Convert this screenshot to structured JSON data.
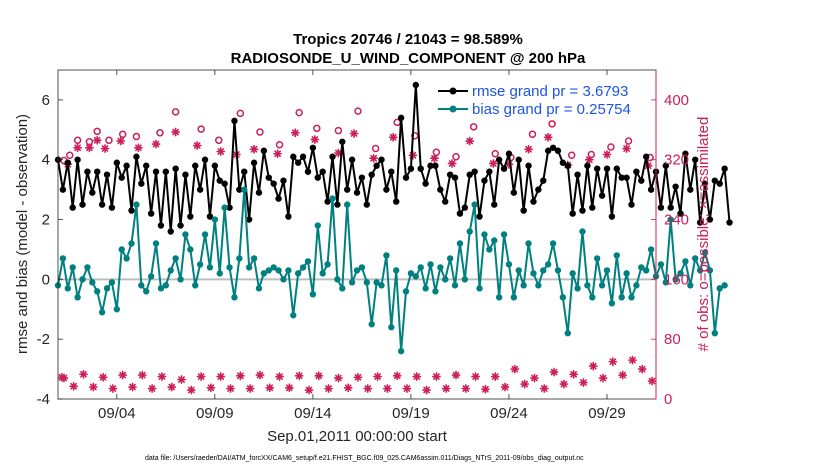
{
  "chart_data": {
    "type": "line",
    "title_line1": "Tropics 20746 / 21043 = 98.589%",
    "title_line2": "RADIOSONDE_U_WIND_COMPONENT @ 200 hPa",
    "xlabel": "Sep.01,2011 00:00:00 start",
    "ylabel_left": "rmse and bias (model - observation)",
    "ylabel_right": "# of obs: o=possible; ×=assimilated",
    "xlim": [
      1,
      31.5
    ],
    "ylim_left": [
      -4,
      7
    ],
    "ylim_right": [
      0,
      440
    ],
    "x_ticks": [
      {
        "label": "09/04",
        "value": 4
      },
      {
        "label": "09/09",
        "value": 9
      },
      {
        "label": "09/14",
        "value": 14
      },
      {
        "label": "09/19",
        "value": 19
      },
      {
        "label": "09/24",
        "value": 24
      },
      {
        "label": "09/29",
        "value": 29
      }
    ],
    "y_ticks_left": [
      {
        "label": "-4",
        "value": -4
      },
      {
        "label": "-2",
        "value": -2
      },
      {
        "label": "0",
        "value": 0
      },
      {
        "label": "2",
        "value": 2
      },
      {
        "label": "4",
        "value": 4
      },
      {
        "label": "6",
        "value": 6
      }
    ],
    "y_ticks_right": [
      {
        "label": "0",
        "value": 0
      },
      {
        "label": "80",
        "value": 80
      },
      {
        "label": "160",
        "value": 160
      },
      {
        "label": "240",
        "value": 240
      },
      {
        "label": "320",
        "value": 320
      },
      {
        "label": "400",
        "value": 400
      }
    ],
    "x_start": 1.0,
    "x_step": 0.25,
    "series": [
      {
        "name": "rmse grand pr = 3.6793",
        "color": "#000000",
        "axis": "left",
        "values": [
          4.0,
          3.0,
          3.9,
          2.4,
          4.0,
          2.5,
          3.6,
          2.9,
          3.6,
          2.5,
          3.5,
          2.4,
          3.9,
          3.4,
          3.8,
          2.3,
          4.1,
          3.2,
          3.8,
          2.2,
          3.6,
          1.8,
          3.6,
          1.6,
          3.7,
          1.8,
          3.5,
          2.1,
          3.8,
          3.0,
          4.0,
          2.1,
          3.8,
          3.3,
          3.2,
          2.4,
          5.3,
          3.0,
          3.6,
          2.0,
          3.9,
          2.9,
          4.3,
          3.4,
          3.2,
          2.7,
          3.3,
          2.1,
          4.1,
          3.9,
          4.1,
          3.6,
          4.4,
          3.4,
          3.6,
          2.6,
          4.1,
          2.5,
          4.6,
          3.0,
          4.0,
          2.9,
          3.4,
          2.5,
          3.5,
          3.8,
          4.0,
          3.0,
          3.6,
          2.6,
          5.4,
          3.4,
          3.7,
          6.5,
          3.7,
          3.2,
          3.8,
          3.8,
          3.0,
          2.6,
          3.5,
          3.4,
          2.2,
          2.4,
          3.5,
          3.6,
          2.1,
          3.3,
          3.6,
          2.5,
          4.0,
          3.7,
          4.2,
          2.9,
          4.0,
          2.3,
          3.8,
          2.6,
          3.0,
          3.3,
          4.3,
          4.4,
          4.3,
          3.9,
          3.8,
          2.2,
          3.5,
          2.3,
          3.8,
          2.4,
          3.7,
          2.8,
          3.7,
          2.1,
          3.7,
          3.4,
          3.4,
          2.5,
          3.6,
          3.3,
          4.1,
          3.0,
          3.6,
          2.4,
          3.8,
          2.4,
          3.1,
          2.2,
          4.2,
          3.0,
          4.0,
          1.9,
          3.2,
          2.0,
          3.3,
          3.2,
          3.7,
          1.9
        ]
      },
      {
        "name": "bias grand pr = 0.25754",
        "color": "#008080",
        "axis": "left",
        "values": [
          -0.2,
          0.7,
          -0.3,
          0.4,
          -0.6,
          0.0,
          0.4,
          -0.1,
          -0.4,
          -1.1,
          -0.3,
          -0.1,
          -1.0,
          1.0,
          0.7,
          1.2,
          2.5,
          -0.2,
          -0.4,
          0.1,
          1.2,
          -0.3,
          -0.2,
          0.3,
          0.7,
          0.0,
          1.5,
          1.0,
          -0.2,
          0.5,
          1.5,
          0.4,
          2.0,
          0.2,
          2.4,
          0.4,
          -0.6,
          0.7,
          3.0,
          0.4,
          0.7,
          -0.3,
          0.2,
          0.3,
          0.4,
          0.3,
          0.0,
          0.3,
          -1.2,
          0.2,
          0.4,
          0.6,
          -0.5,
          1.8,
          0.2,
          0.5,
          2.7,
          0.0,
          -0.3,
          2.5,
          -0.1,
          0.3,
          0.4,
          -0.1,
          -1.5,
          -0.1,
          -0.2,
          0.8,
          -1.6,
          0.3,
          -2.4,
          -0.4,
          0.2,
          0.1,
          0.4,
          -0.3,
          0.5,
          -0.4,
          0.4,
          0.0,
          0.7,
          -0.2,
          1.2,
          0.0,
          1.6,
          2.5,
          -0.3,
          1.5,
          1.0,
          1.3,
          -0.6,
          1.5,
          0.5,
          -0.6,
          0.3,
          -0.2,
          1.2,
          0.2,
          -0.2,
          0.3,
          0.5,
          1.2,
          0.3,
          -0.6,
          -1.8,
          0.2,
          -0.3,
          1.6,
          -0.2,
          -0.6,
          0.7,
          -0.2,
          0.3,
          -0.8,
          0.8,
          -0.6,
          0.2,
          -0.6,
          -0.2,
          0.4,
          0.3,
          1.0,
          0.1,
          0.5,
          -0.1,
          2.0,
          0.0,
          0.2,
          0.6,
          -0.2,
          0.7,
          0.3,
          0.9,
          0.3,
          -1.8,
          -0.3,
          -0.2
        ]
      }
    ],
    "obs_possible": {
      "name": "possible",
      "marker": "o",
      "color": "#cc1f5a",
      "axis": "right",
      "points": [
        {
          "x": 1.3,
          "y": 319
        },
        {
          "x": 1.6,
          "y": 326
        },
        {
          "x": 2.0,
          "y": 346
        },
        {
          "x": 2.6,
          "y": 344
        },
        {
          "x": 3.0,
          "y": 358
        },
        {
          "x": 3.6,
          "y": 346
        },
        {
          "x": 4.3,
          "y": 354
        },
        {
          "x": 5.0,
          "y": 351
        },
        {
          "x": 6.2,
          "y": 356
        },
        {
          "x": 7.0,
          "y": 384
        },
        {
          "x": 8.3,
          "y": 361
        },
        {
          "x": 9.2,
          "y": 346
        },
        {
          "x": 10.3,
          "y": 382
        },
        {
          "x": 11.3,
          "y": 357
        },
        {
          "x": 12.3,
          "y": 340
        },
        {
          "x": 13.3,
          "y": 383
        },
        {
          "x": 14.2,
          "y": 362
        },
        {
          "x": 15.3,
          "y": 359
        },
        {
          "x": 16.3,
          "y": 385
        },
        {
          "x": 17.2,
          "y": 335
        },
        {
          "x": 18.3,
          "y": 370
        },
        {
          "x": 19.2,
          "y": 352
        },
        {
          "x": 20.3,
          "y": 330
        },
        {
          "x": 21.3,
          "y": 324
        },
        {
          "x": 22.2,
          "y": 364
        },
        {
          "x": 23.3,
          "y": 328
        },
        {
          "x": 24.1,
          "y": 323
        },
        {
          "x": 25.2,
          "y": 354
        },
        {
          "x": 26.2,
          "y": 368
        },
        {
          "x": 27.2,
          "y": 326
        },
        {
          "x": 28.2,
          "y": 327
        },
        {
          "x": 29.2,
          "y": 337
        },
        {
          "x": 30.1,
          "y": 345
        },
        {
          "x": 31.2,
          "y": 323
        }
      ]
    },
    "obs_assimilated": {
      "name": "assimilated",
      "marker": "*",
      "color": "#cc1f5a",
      "axis": "right",
      "points": [
        {
          "x": 1.2,
          "y": 29
        },
        {
          "x": 1.5,
          "y": 314
        },
        {
          "x": 2.0,
          "y": 336
        },
        {
          "x": 2.6,
          "y": 336
        },
        {
          "x": 3.0,
          "y": 346
        },
        {
          "x": 3.4,
          "y": 335
        },
        {
          "x": 4.2,
          "y": 345
        },
        {
          "x": 5.1,
          "y": 336
        },
        {
          "x": 6.0,
          "y": 341
        },
        {
          "x": 7.0,
          "y": 357
        },
        {
          "x": 8.1,
          "y": 339
        },
        {
          "x": 9.3,
          "y": 331
        },
        {
          "x": 10.1,
          "y": 327
        },
        {
          "x": 11.0,
          "y": 334
        },
        {
          "x": 12.2,
          "y": 328
        },
        {
          "x": 13.1,
          "y": 356
        },
        {
          "x": 14.1,
          "y": 347
        },
        {
          "x": 15.3,
          "y": 329
        },
        {
          "x": 16.1,
          "y": 355
        },
        {
          "x": 17.1,
          "y": 322
        },
        {
          "x": 18.1,
          "y": 350
        },
        {
          "x": 19.1,
          "y": 326
        },
        {
          "x": 20.2,
          "y": 322
        },
        {
          "x": 21.1,
          "y": 315
        },
        {
          "x": 22.0,
          "y": 345
        },
        {
          "x": 23.2,
          "y": 315
        },
        {
          "x": 24.0,
          "y": 314
        },
        {
          "x": 25.0,
          "y": 334
        },
        {
          "x": 26.0,
          "y": 350
        },
        {
          "x": 27.0,
          "y": 313
        },
        {
          "x": 28.1,
          "y": 320
        },
        {
          "x": 29.0,
          "y": 327
        },
        {
          "x": 30.0,
          "y": 335
        },
        {
          "x": 31.1,
          "y": 312
        }
      ]
    },
    "obs_low_assimilated": {
      "name": "assimilated (low counts)",
      "marker": "*",
      "color": "#cc1f5a",
      "axis": "right",
      "points": [
        {
          "x": 1.3,
          "y": 28
        },
        {
          "x": 1.8,
          "y": 17
        },
        {
          "x": 2.3,
          "y": 33
        },
        {
          "x": 2.8,
          "y": 16
        },
        {
          "x": 3.3,
          "y": 29
        },
        {
          "x": 3.8,
          "y": 14
        },
        {
          "x": 4.3,
          "y": 32
        },
        {
          "x": 4.8,
          "y": 16
        },
        {
          "x": 5.3,
          "y": 32
        },
        {
          "x": 5.8,
          "y": 14
        },
        {
          "x": 6.3,
          "y": 30
        },
        {
          "x": 6.8,
          "y": 16
        },
        {
          "x": 7.3,
          "y": 26
        },
        {
          "x": 7.8,
          "y": 12
        },
        {
          "x": 8.3,
          "y": 30
        },
        {
          "x": 8.8,
          "y": 15
        },
        {
          "x": 9.3,
          "y": 30
        },
        {
          "x": 9.8,
          "y": 14
        },
        {
          "x": 10.3,
          "y": 31
        },
        {
          "x": 10.8,
          "y": 14
        },
        {
          "x": 11.3,
          "y": 32
        },
        {
          "x": 11.8,
          "y": 15
        },
        {
          "x": 12.3,
          "y": 30
        },
        {
          "x": 12.8,
          "y": 15
        },
        {
          "x": 13.3,
          "y": 31
        },
        {
          "x": 13.8,
          "y": 12
        },
        {
          "x": 14.3,
          "y": 31
        },
        {
          "x": 14.8,
          "y": 14
        },
        {
          "x": 15.3,
          "y": 28
        },
        {
          "x": 15.8,
          "y": 15
        },
        {
          "x": 16.3,
          "y": 29
        },
        {
          "x": 16.8,
          "y": 14
        },
        {
          "x": 17.3,
          "y": 30
        },
        {
          "x": 17.8,
          "y": 14
        },
        {
          "x": 18.3,
          "y": 31
        },
        {
          "x": 18.8,
          "y": 14
        },
        {
          "x": 19.3,
          "y": 30
        },
        {
          "x": 19.8,
          "y": 12
        },
        {
          "x": 20.3,
          "y": 30
        },
        {
          "x": 20.8,
          "y": 14
        },
        {
          "x": 21.3,
          "y": 32
        },
        {
          "x": 21.8,
          "y": 14
        },
        {
          "x": 22.3,
          "y": 30
        },
        {
          "x": 22.8,
          "y": 13
        },
        {
          "x": 23.3,
          "y": 30
        },
        {
          "x": 23.8,
          "y": 16
        },
        {
          "x": 24.3,
          "y": 40
        },
        {
          "x": 24.8,
          "y": 20
        },
        {
          "x": 25.3,
          "y": 28
        },
        {
          "x": 25.8,
          "y": 14
        },
        {
          "x": 26.3,
          "y": 36
        },
        {
          "x": 26.8,
          "y": 20
        },
        {
          "x": 27.3,
          "y": 33
        },
        {
          "x": 27.8,
          "y": 22
        },
        {
          "x": 28.3,
          "y": 44
        },
        {
          "x": 28.8,
          "y": 28
        },
        {
          "x": 29.3,
          "y": 50
        },
        {
          "x": 29.8,
          "y": 32
        },
        {
          "x": 30.3,
          "y": 52
        },
        {
          "x": 30.8,
          "y": 40
        },
        {
          "x": 31.3,
          "y": 24
        }
      ]
    },
    "zero_line_color": "#bdbdbd",
    "right_axis_color": "#cc1f5a",
    "legend_text_color": "#1e55e0",
    "legend_location": "top-right",
    "grid": false
  },
  "footnote": "data file: /Users/raeder/DAI/ATM_forcXX/CAM6_setup/f.e21.FHIST_BGC.f09_025.CAM6assim.011/Diags_NTrS_2011-09/obs_diag_output.nc"
}
